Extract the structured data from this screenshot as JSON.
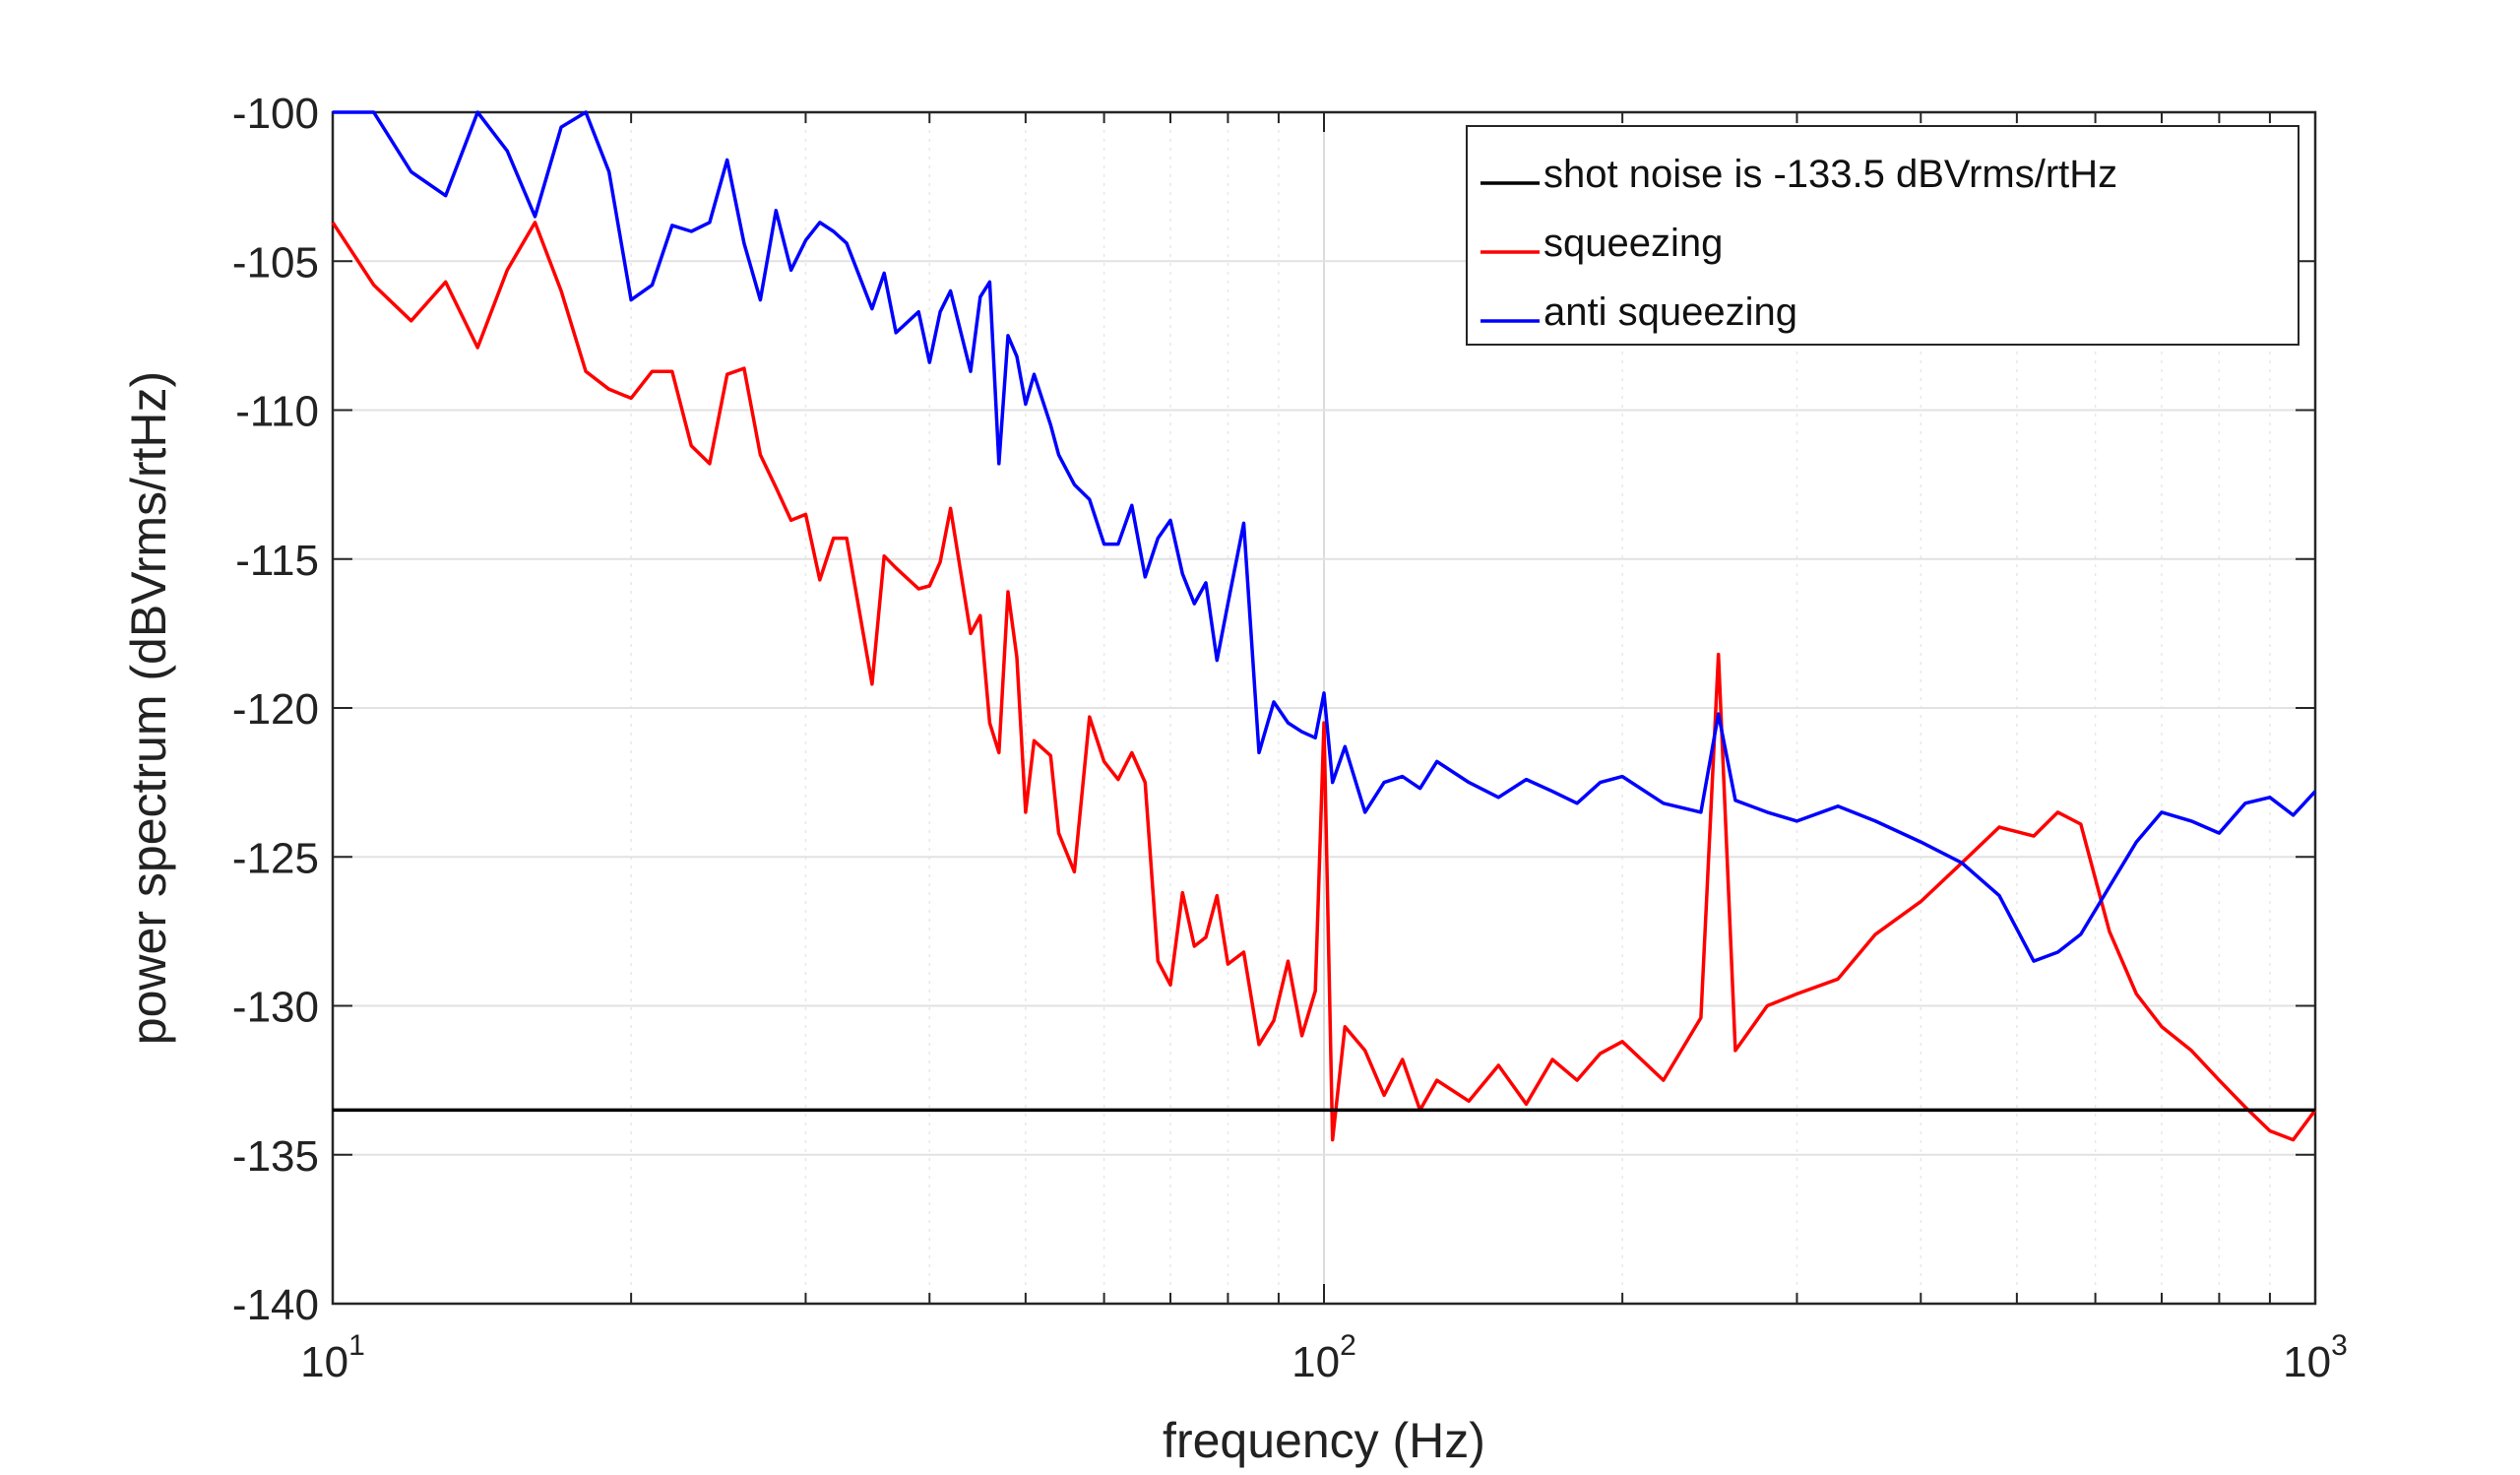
{
  "chart_data": {
    "type": "line",
    "title": "",
    "xlabel": "frequency (Hz)",
    "ylabel": "power spectrum (dBVrms/rtHz)",
    "xscale": "log",
    "xlim": [
      10,
      1000
    ],
    "ylim": [
      -140,
      -100
    ],
    "x_ticks": [
      {
        "base": "10",
        "exp": "1"
      },
      {
        "base": "10",
        "exp": "2"
      },
      {
        "base": "10",
        "exp": "3"
      }
    ],
    "y_ticks": [
      "-100",
      "-105",
      "-110",
      "-115",
      "-120",
      "-125",
      "-130",
      "-135",
      "-140"
    ],
    "y_tick_values": [
      -100,
      -105,
      -110,
      -115,
      -120,
      -125,
      -130,
      -135,
      -140
    ],
    "grid": true,
    "legend_position": "top-right",
    "series": [
      {
        "name": "shot noise is -133.5 dBVrms/rtHz",
        "color": "#000000",
        "x": [
          10,
          1000
        ],
        "y": [
          -133.5,
          -133.5
        ]
      },
      {
        "name": "squeezing",
        "color": "#ff0000",
        "x": [
          10,
          11,
          12,
          13,
          14,
          15,
          16,
          17,
          18,
          19,
          20,
          21,
          22,
          23,
          24,
          25,
          26,
          27,
          28,
          29,
          30,
          31,
          32,
          33,
          35,
          36,
          37,
          39,
          40,
          41,
          42,
          44,
          45,
          46,
          47,
          48,
          49,
          50,
          51,
          53,
          54,
          56,
          58,
          60,
          62,
          64,
          66,
          68,
          70,
          72,
          74,
          76,
          78,
          80,
          83,
          86,
          89,
          92,
          95,
          98,
          100,
          102,
          105,
          110,
          115,
          120,
          125,
          130,
          140,
          150,
          160,
          170,
          180,
          190,
          200,
          220,
          240,
          250,
          260,
          280,
          300,
          330,
          360,
          400,
          440,
          480,
          520,
          550,
          580,
          620,
          660,
          700,
          750,
          800,
          850,
          900,
          950,
          1000
        ],
        "y": [
          -103.7,
          -105.8,
          -107,
          -105.7,
          -107.9,
          -105.3,
          -103.7,
          -106,
          -108.7,
          -109.3,
          -109.6,
          -108.7,
          -108.7,
          -111.2,
          -111.8,
          -108.8,
          -108.6,
          -111.5,
          -112.6,
          -113.7,
          -113.5,
          -115.7,
          -114.3,
          -114.3,
          -119.2,
          -114.9,
          -115.3,
          -116,
          -115.9,
          -115.1,
          -113.3,
          -117.5,
          -116.9,
          -120.5,
          -121.5,
          -116.1,
          -118.3,
          -123.5,
          -121.1,
          -121.6,
          -124.2,
          -125.5,
          -120.3,
          -121.8,
          -122.4,
          -121.5,
          -122.5,
          -128.5,
          -129.3,
          -126.2,
          -128,
          -127.7,
          -126.3,
          -128.6,
          -128.2,
          -131.3,
          -130.5,
          -128.5,
          -131,
          -129.5,
          -120.5,
          -134.5,
          -130.7,
          -131.5,
          -133,
          -131.8,
          -133.5,
          -132.5,
          -133.2,
          -132,
          -133.3,
          -131.8,
          -132.5,
          -131.6,
          -131.2,
          -132.5,
          -130.4,
          -118.2,
          -131.5,
          -130,
          -129.6,
          -129.1,
          -127.6,
          -126.5,
          -125.2,
          -124,
          -124.3,
          -123.5,
          -123.9,
          -127.5,
          -129.6,
          -130.7,
          -131.5,
          -132.5,
          -133.4,
          -134.2,
          -134.5,
          -133.5
        ]
      },
      {
        "name": "anti squeezing",
        "color": "#0000ff",
        "x": [
          10,
          11,
          12,
          13,
          14,
          15,
          16,
          17,
          18,
          19,
          20,
          21,
          22,
          23,
          24,
          25,
          26,
          27,
          28,
          29,
          30,
          31,
          32,
          33,
          35,
          36,
          37,
          39,
          40,
          41,
          42,
          44,
          45,
          46,
          47,
          48,
          49,
          50,
          51,
          53,
          54,
          56,
          58,
          60,
          62,
          64,
          66,
          68,
          70,
          72,
          74,
          76,
          78,
          80,
          83,
          86,
          89,
          92,
          95,
          98,
          100,
          102,
          105,
          110,
          115,
          120,
          125,
          130,
          140,
          150,
          160,
          170,
          180,
          190,
          200,
          220,
          240,
          250,
          260,
          280,
          300,
          330,
          360,
          400,
          440,
          480,
          520,
          550,
          580,
          620,
          660,
          700,
          750,
          800,
          850,
          900,
          950,
          1000
        ],
        "y": [
          -99.2,
          -100,
          -102,
          -102.8,
          -100,
          -101.3,
          -103.5,
          -100.5,
          -99.5,
          -102,
          -106.3,
          -105.8,
          -103.8,
          -104,
          -103.7,
          -101.6,
          -104.4,
          -106.3,
          -103.3,
          -105.3,
          -104.3,
          -103.7,
          -104,
          -104.4,
          -106.6,
          -105.4,
          -107.4,
          -106.7,
          -108.4,
          -106.7,
          -106,
          -108.7,
          -106.2,
          -105.7,
          -111.8,
          -107.5,
          -108.2,
          -109.8,
          -108.8,
          -110.5,
          -111.5,
          -112.5,
          -113,
          -114.5,
          -114.5,
          -113.2,
          -115.6,
          -114.3,
          -113.7,
          -115.5,
          -116.5,
          -115.8,
          -118.4,
          -116.5,
          -113.8,
          -121.5,
          -119.8,
          -120.5,
          -120.8,
          -121,
          -119.5,
          -122.5,
          -121.3,
          -123.5,
          -122.5,
          -122.3,
          -122.7,
          -121.8,
          -122.5,
          -123,
          -122.4,
          -122.8,
          -123.2,
          -122.5,
          -122.3,
          -123.2,
          -123.5,
          -120.2,
          -123.1,
          -123.5,
          -123.8,
          -123.3,
          -123.8,
          -124.5,
          -125.2,
          -126.3,
          -128.5,
          -128.2,
          -127.6,
          -126,
          -124.5,
          -123.5,
          -123.8,
          -124.2,
          -123.2,
          -123,
          -123.6,
          -122.8
        ]
      }
    ]
  }
}
